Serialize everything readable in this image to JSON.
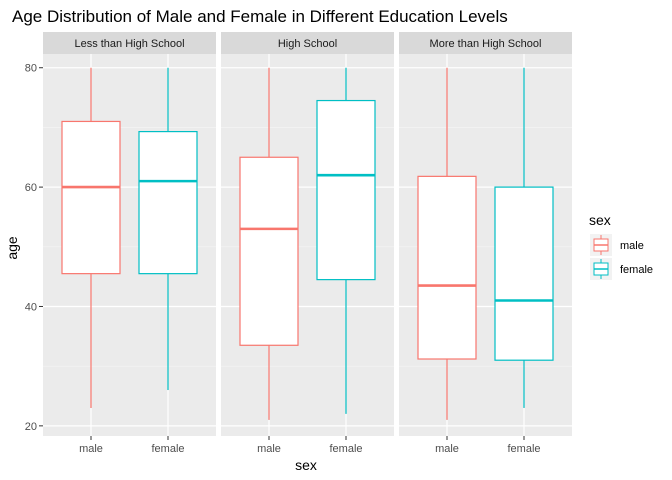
{
  "chart_data": {
    "type": "boxplot",
    "title": "Age Distribution of Male and Female in Different Education Levels",
    "xlabel": "sex",
    "ylabel": "age",
    "ylim": [
      18.3,
      82.3
    ],
    "yticks": [
      20,
      40,
      60,
      80
    ],
    "grid": true,
    "legend": {
      "title": "sex",
      "placement": "right",
      "entries": [
        "male",
        "female"
      ]
    },
    "series_colors": {
      "male": "#F8766D",
      "female": "#00BFC4"
    },
    "categories": [
      "male",
      "female"
    ],
    "facets": [
      {
        "label": "Less than High School",
        "boxes": [
          {
            "sex": "male",
            "min": 23,
            "q1": 45.5,
            "median": 60,
            "q3": 71,
            "max": 80
          },
          {
            "sex": "female",
            "min": 26,
            "q1": 45.5,
            "median": 61,
            "q3": 69.3,
            "max": 80
          }
        ]
      },
      {
        "label": "High School",
        "boxes": [
          {
            "sex": "male",
            "min": 21,
            "q1": 33.5,
            "median": 53,
            "q3": 65,
            "max": 80
          },
          {
            "sex": "female",
            "min": 22,
            "q1": 44.5,
            "median": 62,
            "q3": 74.5,
            "max": 80
          }
        ]
      },
      {
        "label": "More than High School",
        "boxes": [
          {
            "sex": "male",
            "min": 21,
            "q1": 31.2,
            "median": 43.5,
            "q3": 61.8,
            "max": 80
          },
          {
            "sex": "female",
            "min": 23,
            "q1": 31,
            "median": 41,
            "q3": 60,
            "max": 80
          }
        ]
      }
    ]
  }
}
